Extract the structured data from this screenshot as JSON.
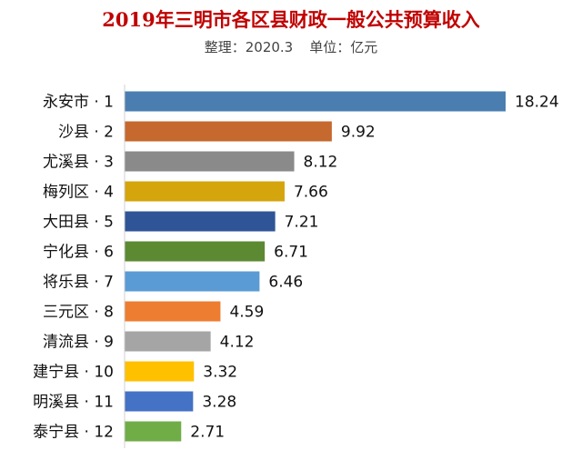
{
  "chart_data": {
    "type": "bar",
    "orientation": "horizontal",
    "title": "2019年三明市各区县财政一般公共预算收入",
    "subtitle_source": "整理：2020.3",
    "subtitle_unit": "单位：亿元",
    "categories": [
      "永安市 · 1",
      "沙县 · 2",
      "尤溪县 · 3",
      "梅列区 · 4",
      "大田县 · 5",
      "宁化县 · 6",
      "将乐县 · 7",
      "三元区 · 8",
      "清流县 · 9",
      "建宁县 · 10",
      "明溪县 · 11",
      "泰宁县 · 12"
    ],
    "values": [
      18.24,
      9.92,
      8.12,
      7.66,
      7.21,
      6.71,
      6.46,
      4.59,
      4.12,
      3.32,
      3.28,
      2.71
    ],
    "value_labels": [
      "18.24",
      "9.92",
      "8.12",
      "7.66",
      "7.21",
      "6.71",
      "6.46",
      "4.59",
      "4.12",
      "3.32",
      "3.28",
      "2.71"
    ],
    "colors": [
      "#4a7eb0",
      "#c5692e",
      "#8a8a8a",
      "#d4a50c",
      "#2f5597",
      "#5b8a32",
      "#5b9bd5",
      "#ed7d31",
      "#a5a5a5",
      "#ffc000",
      "#4472c4",
      "#70ad47"
    ],
    "xlim": [
      0,
      18.24
    ],
    "grid": false,
    "legend": "none"
  }
}
